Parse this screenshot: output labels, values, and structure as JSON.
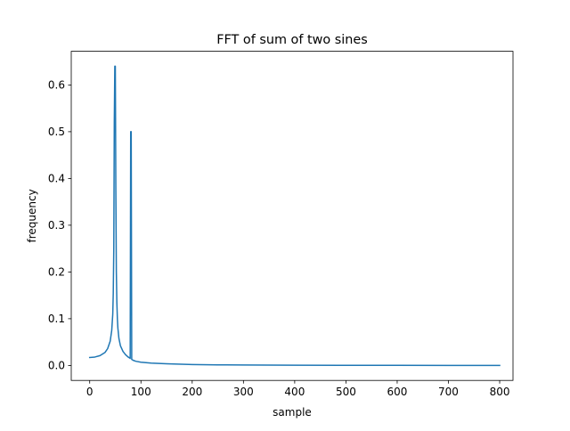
{
  "chart_data": {
    "type": "line",
    "title": "FFT of sum of two sines",
    "xlabel": "sample",
    "ylabel": "frequency",
    "xlim": [
      -36,
      826
    ],
    "ylim": [
      -0.032,
      0.672
    ],
    "xticks": [
      0,
      100,
      200,
      300,
      400,
      500,
      600,
      700,
      800
    ],
    "yticks": [
      0.0,
      0.1,
      0.2,
      0.3,
      0.4,
      0.5,
      0.6
    ],
    "ytick_labels": [
      "0.0",
      "0.1",
      "0.2",
      "0.3",
      "0.4",
      "0.5",
      "0.6"
    ],
    "grid": false,
    "legend": "none",
    "series": [
      {
        "color": "#1f77b4",
        "x": [
          0,
          10,
          20,
          30,
          35,
          40,
          43,
          45,
          46,
          47,
          48,
          49,
          50,
          51,
          52,
          53,
          54,
          55,
          57,
          60,
          65,
          70,
          75,
          78,
          79,
          80,
          81,
          82,
          85,
          90,
          100,
          120,
          150,
          200,
          250,
          300,
          400,
          500,
          600,
          700,
          800
        ],
        "values": [
          0.017,
          0.018,
          0.021,
          0.028,
          0.036,
          0.052,
          0.075,
          0.11,
          0.155,
          0.25,
          0.52,
          0.64,
          0.64,
          0.38,
          0.2,
          0.135,
          0.1,
          0.08,
          0.058,
          0.042,
          0.03,
          0.023,
          0.018,
          0.016,
          0.015,
          0.5,
          0.5,
          0.013,
          0.011,
          0.009,
          0.007,
          0.005,
          0.0035,
          0.002,
          0.0013,
          0.0009,
          0.0005,
          0.0003,
          0.0002,
          0.0001,
          0.0001
        ]
      }
    ]
  }
}
